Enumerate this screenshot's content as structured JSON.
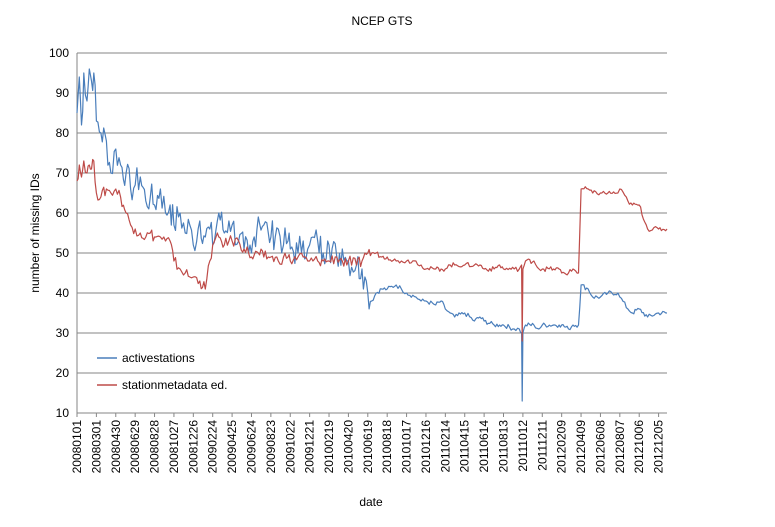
{
  "chart_data": {
    "type": "line",
    "title": "NCEP GTS",
    "xlabel": "date",
    "ylabel": "number of missing IDs",
    "ylim": [
      10,
      100
    ],
    "yticks": [
      10,
      20,
      30,
      40,
      50,
      60,
      70,
      80,
      90,
      100
    ],
    "grid": "horizontal",
    "legend_position": "lower-left",
    "xlim": [
      "20080101",
      "20121231"
    ],
    "x_tick_labels": [
      "20080101",
      "20080301",
      "20080430",
      "20080629",
      "20080828",
      "20081027",
      "20081226",
      "20090224",
      "20090425",
      "20090624",
      "20090823",
      "20091022",
      "20091221",
      "20100219",
      "20100420",
      "20100619",
      "20100818",
      "20101017",
      "20101216",
      "20110214",
      "20110415",
      "20110614",
      "20110813",
      "20111012",
      "20111211",
      "20120209",
      "20120409",
      "20120608",
      "20120807",
      "20121006",
      "20121205"
    ],
    "series": [
      {
        "name": "activestations",
        "color": "#4a7ebb",
        "points": [
          [
            "20080101",
            85
          ],
          [
            "20080108",
            94
          ],
          [
            "20080115",
            82
          ],
          [
            "20080122",
            95
          ],
          [
            "20080201",
            88
          ],
          [
            "20080208",
            96
          ],
          [
            "20080215",
            93
          ],
          [
            "20080222",
            95
          ],
          [
            "20080301",
            83
          ],
          [
            "20080315",
            80
          ],
          [
            "20080401",
            78
          ],
          [
            "20080415",
            70
          ],
          [
            "20080430",
            76
          ],
          [
            "20080515",
            72
          ],
          [
            "20080601",
            70
          ],
          [
            "20080615",
            66
          ],
          [
            "20080629",
            67
          ],
          [
            "20080715",
            69
          ],
          [
            "20080801",
            63
          ],
          [
            "20080815",
            64
          ],
          [
            "20080828",
            62
          ],
          [
            "20080915",
            66
          ],
          [
            "20081001",
            60
          ],
          [
            "20081015",
            62
          ],
          [
            "20081027",
            57
          ],
          [
            "20081115",
            60
          ],
          [
            "20081201",
            55
          ],
          [
            "20081215",
            57
          ],
          [
            "20081226",
            52
          ],
          [
            "20090115",
            58
          ],
          [
            "20090201",
            54
          ],
          [
            "20090215",
            56
          ],
          [
            "20090224",
            52
          ],
          [
            "20090315",
            60
          ],
          [
            "20090401",
            55
          ],
          [
            "20090415",
            58
          ],
          [
            "20090425",
            57
          ],
          [
            "20090515",
            53
          ],
          [
            "20090601",
            51
          ],
          [
            "20090615",
            50
          ],
          [
            "20090624",
            50
          ],
          [
            "20090715",
            59
          ],
          [
            "20090801",
            57
          ],
          [
            "20090815",
            55
          ],
          [
            "20090823",
            54
          ],
          [
            "20090915",
            56
          ],
          [
            "20091001",
            52
          ],
          [
            "20091015",
            53
          ],
          [
            "20091022",
            51
          ],
          [
            "20091115",
            50
          ],
          [
            "20091201",
            53
          ],
          [
            "20091215",
            51
          ],
          [
            "20091221",
            52
          ],
          [
            "20100115",
            53
          ],
          [
            "20100201",
            50
          ],
          [
            "20100215",
            53
          ],
          [
            "20100219",
            52
          ],
          [
            "20100315",
            49
          ],
          [
            "20100401",
            51
          ],
          [
            "20100415",
            48
          ],
          [
            "20100420",
            48
          ],
          [
            "20100515",
            47
          ],
          [
            "20100601",
            46
          ],
          [
            "20100610",
            44
          ],
          [
            "20100619",
            40
          ],
          [
            "20100701",
            38
          ],
          [
            "20100715",
            40
          ],
          [
            "20100801",
            41
          ],
          [
            "20100818",
            41
          ],
          [
            "20100915",
            42
          ],
          [
            "20101001",
            41
          ],
          [
            "20101017",
            40
          ],
          [
            "20101115",
            39
          ],
          [
            "20101201",
            38
          ],
          [
            "20101216",
            38
          ],
          [
            "20110115",
            37
          ],
          [
            "20110201",
            38
          ],
          [
            "20110214",
            36
          ],
          [
            "20110301",
            35
          ],
          [
            "20110315",
            34
          ],
          [
            "20110415",
            35
          ],
          [
            "20110515",
            33
          ],
          [
            "20110601",
            34
          ],
          [
            "20110614",
            33
          ],
          [
            "20110715",
            32
          ],
          [
            "20110801",
            32
          ],
          [
            "20110813",
            32
          ],
          [
            "20110915",
            31
          ],
          [
            "20111001",
            31
          ],
          [
            "20111008",
            30
          ],
          [
            "20111010",
            13
          ],
          [
            "20111012",
            30
          ],
          [
            "20111020",
            32
          ],
          [
            "20111115",
            32
          ],
          [
            "20111201",
            31
          ],
          [
            "20111211",
            32
          ],
          [
            "20120115",
            32
          ],
          [
            "20120201",
            32
          ],
          [
            "20120209",
            32
          ],
          [
            "20120301",
            31
          ],
          [
            "20120315",
            32
          ],
          [
            "20120401",
            32
          ],
          [
            "20120409",
            42
          ],
          [
            "20120501",
            41
          ],
          [
            "20120515",
            39
          ],
          [
            "20120608",
            39
          ],
          [
            "20120701",
            40
          ],
          [
            "20120801",
            40
          ],
          [
            "20120807",
            39
          ],
          [
            "20120901",
            36
          ],
          [
            "20120915",
            35
          ],
          [
            "20121006",
            36
          ],
          [
            "20121101",
            34
          ],
          [
            "20121205",
            35
          ],
          [
            "20121231",
            35
          ]
        ]
      },
      {
        "name": "stationmetadata ed.",
        "color": "#be4b48",
        "points": [
          [
            "20080101",
            68
          ],
          [
            "20080108",
            72
          ],
          [
            "20080115",
            69
          ],
          [
            "20080122",
            73
          ],
          [
            "20080201",
            70
          ],
          [
            "20080208",
            72
          ],
          [
            "20080215",
            71
          ],
          [
            "20080222",
            73
          ],
          [
            "20080301",
            65
          ],
          [
            "20080315",
            64
          ],
          [
            "20080401",
            66
          ],
          [
            "20080415",
            65
          ],
          [
            "20080430",
            66
          ],
          [
            "20080515",
            64
          ],
          [
            "20080601",
            60
          ],
          [
            "20080615",
            57
          ],
          [
            "20080629",
            56
          ],
          [
            "20080715",
            55
          ],
          [
            "20080801",
            54
          ],
          [
            "20080815",
            55
          ],
          [
            "20080828",
            54
          ],
          [
            "20080915",
            54
          ],
          [
            "20081001",
            53
          ],
          [
            "20081015",
            53
          ],
          [
            "20081027",
            48
          ],
          [
            "20081115",
            46
          ],
          [
            "20081201",
            45
          ],
          [
            "20081215",
            44
          ],
          [
            "20081226",
            44
          ],
          [
            "20090115",
            43
          ],
          [
            "20090201",
            41
          ],
          [
            "20090215",
            48
          ],
          [
            "20090224",
            52
          ],
          [
            "20090315",
            54
          ],
          [
            "20090401",
            52
          ],
          [
            "20090415",
            53
          ],
          [
            "20090425",
            53
          ],
          [
            "20090515",
            53
          ],
          [
            "20090601",
            51
          ],
          [
            "20090615",
            50
          ],
          [
            "20090624",
            49
          ],
          [
            "20090715",
            50
          ],
          [
            "20090801",
            49
          ],
          [
            "20090815",
            49
          ],
          [
            "20090823",
            49
          ],
          [
            "20090915",
            48
          ],
          [
            "20091001",
            49
          ],
          [
            "20091015",
            49
          ],
          [
            "20091022",
            48
          ],
          [
            "20091115",
            49
          ],
          [
            "20091201",
            49
          ],
          [
            "20091215",
            48
          ],
          [
            "20091221",
            48
          ],
          [
            "20100115",
            48
          ],
          [
            "20100201",
            48
          ],
          [
            "20100215",
            48
          ],
          [
            "20100219",
            48
          ],
          [
            "20100315",
            49
          ],
          [
            "20100401",
            48
          ],
          [
            "20100415",
            47
          ],
          [
            "20100420",
            48
          ],
          [
            "20100515",
            47
          ],
          [
            "20100601",
            48
          ],
          [
            "20100610",
            50
          ],
          [
            "20100619",
            50
          ],
          [
            "20100701",
            50
          ],
          [
            "20100715",
            50
          ],
          [
            "20100801",
            49
          ],
          [
            "20100818",
            49
          ],
          [
            "20100915",
            48
          ],
          [
            "20101001",
            48
          ],
          [
            "20101017",
            48
          ],
          [
            "20101115",
            48
          ],
          [
            "20101201",
            47
          ],
          [
            "20101216",
            46
          ],
          [
            "20110115",
            46
          ],
          [
            "20110201",
            46
          ],
          [
            "20110214",
            46
          ],
          [
            "20110301",
            47
          ],
          [
            "20110315",
            47
          ],
          [
            "20110415",
            47
          ],
          [
            "20110515",
            47
          ],
          [
            "20110601",
            47
          ],
          [
            "20110614",
            46
          ],
          [
            "20110715",
            46
          ],
          [
            "20110801",
            47
          ],
          [
            "20110813",
            46
          ],
          [
            "20110915",
            46
          ],
          [
            "20111001",
            46
          ],
          [
            "20111008",
            47
          ],
          [
            "20111010",
            28
          ],
          [
            "20111012",
            46
          ],
          [
            "20111020",
            48
          ],
          [
            "20111115",
            48
          ],
          [
            "20111201",
            46
          ],
          [
            "20111211",
            46
          ],
          [
            "20120115",
            46
          ],
          [
            "20120201",
            46
          ],
          [
            "20120209",
            45
          ],
          [
            "20120301",
            45
          ],
          [
            "20120315",
            46
          ],
          [
            "20120401",
            45
          ],
          [
            "20120409",
            66
          ],
          [
            "20120501",
            66
          ],
          [
            "20120515",
            65
          ],
          [
            "20120608",
            65
          ],
          [
            "20120701",
            65
          ],
          [
            "20120801",
            65
          ],
          [
            "20120807",
            66
          ],
          [
            "20120901",
            63
          ],
          [
            "20120915",
            62
          ],
          [
            "20121006",
            62
          ],
          [
            "20121101",
            56
          ],
          [
            "20121205",
            56
          ],
          [
            "20121231",
            56
          ]
        ]
      }
    ]
  }
}
